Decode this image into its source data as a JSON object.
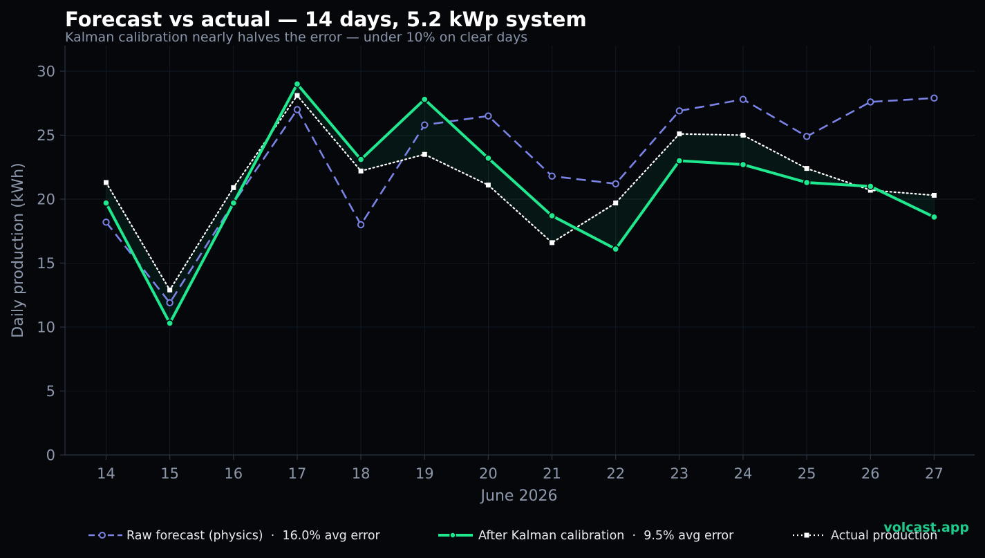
{
  "chart_data": {
    "type": "line",
    "title": "Forecast vs actual — 14 days, 5.2 kWp system",
    "subtitle": "Kalman calibration nearly halves the error — under 10% on clear days",
    "xlabel": "June 2026",
    "ylabel": "Daily production (kWh)",
    "x": [
      14,
      15,
      16,
      17,
      18,
      19,
      20,
      21,
      22,
      23,
      24,
      25,
      26,
      27
    ],
    "ylim": [
      0,
      32
    ],
    "yticks": [
      0,
      5,
      10,
      15,
      20,
      25,
      30
    ],
    "grid": true,
    "legend_position": "bottom",
    "series": [
      {
        "key": "raw",
        "name": "Raw forecast (physics)  ·  16.0% avg error",
        "color": "#7b83e6",
        "values": [
          18.2,
          11.9,
          19.7,
          27.0,
          18.0,
          25.8,
          26.5,
          21.8,
          21.2,
          26.9,
          27.8,
          24.9,
          27.6,
          27.9
        ]
      },
      {
        "key": "kalman",
        "name": "After Kalman calibration  ·  9.5% avg error",
        "color": "#1fe88f",
        "values": [
          19.7,
          10.3,
          19.7,
          29.0,
          23.1,
          27.8,
          23.2,
          18.7,
          16.1,
          23.0,
          22.7,
          21.3,
          21.0,
          18.6
        ]
      },
      {
        "key": "actual",
        "name": "Actual production",
        "color": "#ffffff",
        "values": [
          21.3,
          12.9,
          20.9,
          28.1,
          22.2,
          23.5,
          21.1,
          16.6,
          19.7,
          25.1,
          25.0,
          22.4,
          20.7,
          20.3
        ]
      }
    ]
  },
  "branding": {
    "watermark": "volcast.app"
  }
}
